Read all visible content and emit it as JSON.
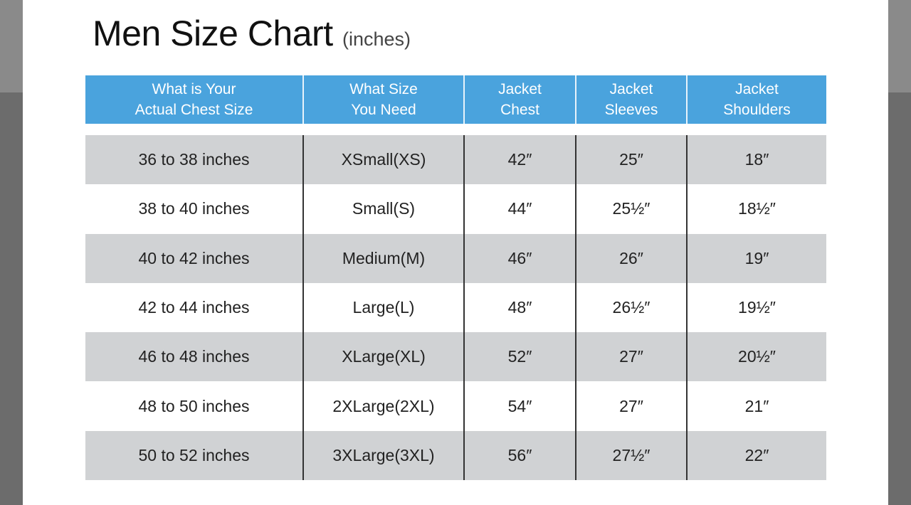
{
  "title": "Men Size Chart",
  "title_unit": "(inches)",
  "colors": {
    "header": "#4aa3dd",
    "stripe": "#d0d2d4"
  },
  "headers": [
    "What is Your\nActual Chest Size",
    "What Size\nYou Need",
    "Jacket\nChest",
    "Jacket\nSleeves",
    "Jacket\nShoulders"
  ],
  "rows": [
    [
      "36 to 38 inches",
      "XSmall(XS)",
      "42″",
      "25″",
      "18″"
    ],
    [
      "38 to 40 inches",
      "Small(S)",
      "44″",
      "25½″",
      "18½″"
    ],
    [
      "40 to 42 inches",
      "Medium(M)",
      "46″",
      "26″",
      "19″"
    ],
    [
      "42 to 44 inches",
      "Large(L)",
      "48″",
      "26½″",
      "19½″"
    ],
    [
      "46 to 48 inches",
      "XLarge(XL)",
      "52″",
      "27″",
      "20½″"
    ],
    [
      "48 to 50 inches",
      "2XLarge(2XL)",
      "54″",
      "27″",
      "21″"
    ],
    [
      "50 to 52 inches",
      "3XLarge(3XL)",
      "56″",
      "27½″",
      "22″"
    ]
  ]
}
